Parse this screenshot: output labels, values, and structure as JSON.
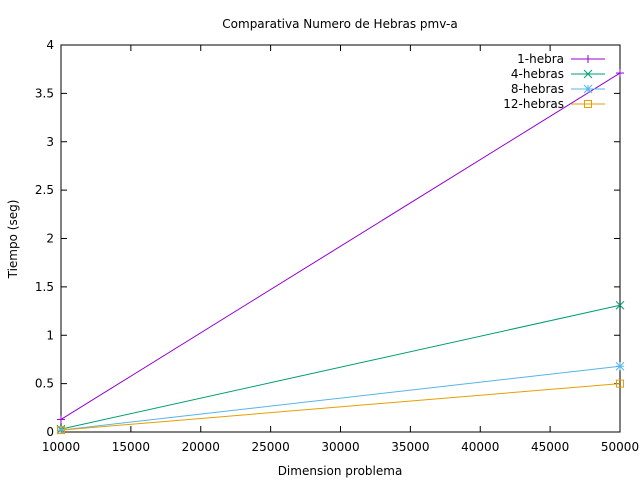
{
  "chart_data": {
    "type": "line",
    "title": "Comparativa Numero de Hebras pmv-a",
    "xlabel": "Dimension problema",
    "ylabel": "Tiempo (seg)",
    "xlim": [
      10000,
      50000
    ],
    "ylim": [
      0,
      4
    ],
    "xticks": [
      "10000",
      "15000",
      "20000",
      "25000",
      "30000",
      "35000",
      "40000",
      "45000",
      "50000"
    ],
    "yticks": [
      "0",
      "0.5",
      "1",
      "1.5",
      "2",
      "2.5",
      "3",
      "3.5",
      "4"
    ],
    "grid": false,
    "legend": "top-right",
    "x": [
      10000,
      50000
    ],
    "series": [
      {
        "name": "1-hebra",
        "values": [
          0.13,
          3.71
        ],
        "color": "#9400d3",
        "marker": "plus"
      },
      {
        "name": "4-hebras",
        "values": [
          0.03,
          1.31
        ],
        "color": "#009e73",
        "marker": "cross"
      },
      {
        "name": "8-hebras",
        "values": [
          0.02,
          0.68
        ],
        "color": "#56b4e9",
        "marker": "star"
      },
      {
        "name": "12-hebras",
        "values": [
          0.02,
          0.5
        ],
        "color": "#e69f00",
        "marker": "square"
      }
    ]
  }
}
